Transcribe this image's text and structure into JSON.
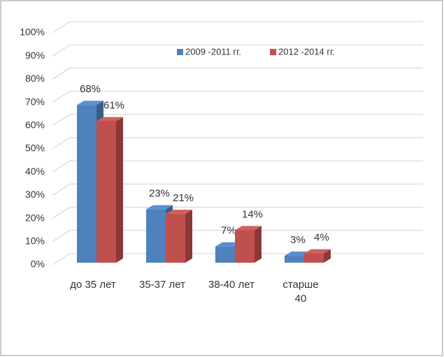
{
  "chart_data": {
    "type": "bar3d",
    "categories": [
      "до 35 лет",
      "35-37 лет",
      "38-40 лет",
      "старше\n40"
    ],
    "series": [
      {
        "name": "2009 -2011 гг.",
        "color": "#4f81bd",
        "side_color": "#385d8a",
        "top_color": "#5b8fd0",
        "values": [
          68,
          23,
          7,
          3
        ],
        "value_labels": [
          "68%",
          "23%",
          "7%",
          "3%"
        ]
      },
      {
        "name": "2012 -2014 гг.",
        "color": "#c0504d",
        "side_color": "#8c3836",
        "top_color": "#d0605d",
        "values": [
          61,
          21,
          14,
          4
        ],
        "value_labels": [
          "61%",
          "21%",
          "14%",
          "4%"
        ]
      }
    ],
    "ylim": [
      0,
      100
    ],
    "yticks": [
      {
        "value": 0,
        "label": "0%"
      },
      {
        "value": 10,
        "label": "10%"
      },
      {
        "value": 20,
        "label": "20%"
      },
      {
        "value": 30,
        "label": "30%"
      },
      {
        "value": 40,
        "label": "40%"
      },
      {
        "value": 50,
        "label": "50%"
      },
      {
        "value": 60,
        "label": "60%"
      },
      {
        "value": 70,
        "label": "70%"
      },
      {
        "value": 80,
        "label": "80%"
      },
      {
        "value": 90,
        "label": "90%"
      },
      {
        "value": 100,
        "label": "100%"
      }
    ],
    "grid": true
  }
}
